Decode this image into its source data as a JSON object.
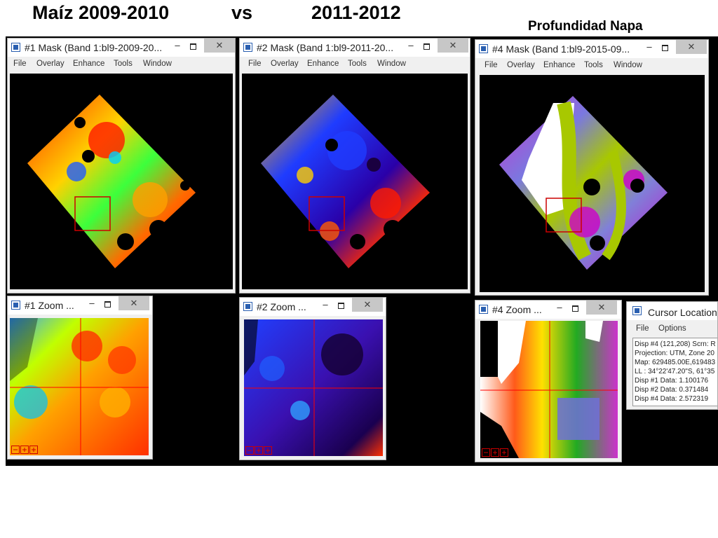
{
  "slide": {
    "title_left": "Maíz 2009-2010",
    "title_vs": "vs",
    "title_right": "2011-2012",
    "subtitle": "Profundidad Napa"
  },
  "mask_windows": [
    {
      "title": "#1 Mask (Band 1:bl9-2009-20...",
      "min": "–",
      "close": "✕"
    },
    {
      "title": "#2 Mask (Band 1:bl9-2011-20...",
      "min": "–",
      "close": "✕"
    },
    {
      "title": "#4 Mask (Band 1:bl9-2015-09...",
      "min": "–",
      "close": "✕"
    }
  ],
  "menu": {
    "file": "File",
    "overlay": "Overlay",
    "enhance": "Enhance",
    "tools": "Tools",
    "window": "Window"
  },
  "zoom_windows": [
    {
      "title": "#1 Zoom ...",
      "min": "–",
      "close": "✕"
    },
    {
      "title": "#2 Zoom ...",
      "min": "–",
      "close": "✕"
    },
    {
      "title": "#4 Zoom ...",
      "min": "–",
      "close": "✕"
    }
  ],
  "cursor_window": {
    "title": "Cursor Location",
    "menu_file": "File",
    "menu_options": "Options",
    "lines": [
      "Disp #4 (121,208) Scrn: R",
      "Projection: UTM, Zone 20",
      "Map: 629485.00E,619483",
      "LL : 34°22'47.20\"S, 61°35",
      "Disp #1 Data: 1.100176",
      "Disp #2 Data: 0.371484",
      "Disp #4 Data: 2.572319"
    ]
  },
  "colors": {
    "backdrop": "#000000",
    "window_bg": "#f0f0f0",
    "close_button": "#c7c7c7",
    "roi_box": "#cc0000",
    "crosshair": "#ff0000"
  }
}
